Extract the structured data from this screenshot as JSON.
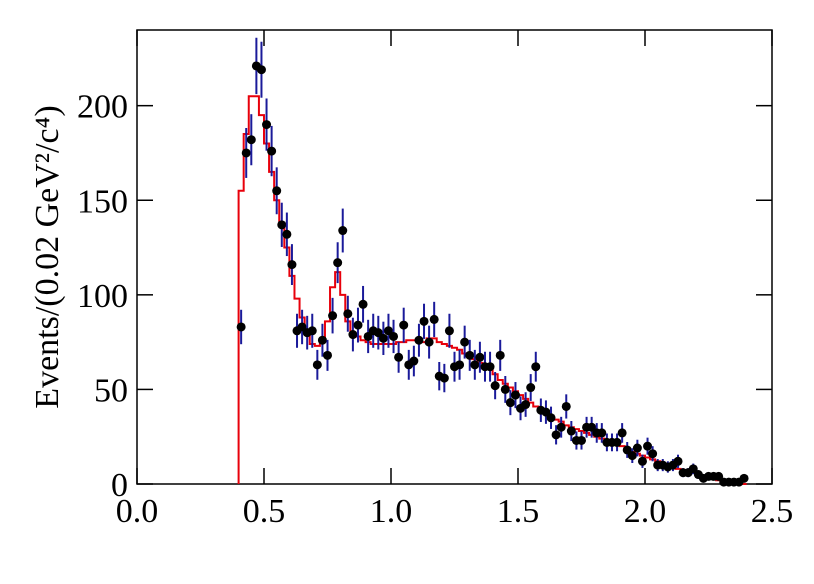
{
  "chart_data": {
    "type": "errorbar",
    "y_label": "Events/(0.02 GeV²/c⁴)",
    "x": [
      0.41,
      0.43,
      0.45,
      0.47,
      0.49,
      0.51,
      0.53,
      0.55,
      0.57,
      0.59,
      0.61,
      0.63,
      0.65,
      0.67,
      0.69,
      0.71,
      0.73,
      0.75,
      0.77,
      0.79,
      0.81,
      0.83,
      0.85,
      0.87,
      0.89,
      0.91,
      0.93,
      0.95,
      0.97,
      0.99,
      1.01,
      1.03,
      1.05,
      1.07,
      1.09,
      1.11,
      1.13,
      1.15,
      1.17,
      1.19,
      1.21,
      1.23,
      1.25,
      1.27,
      1.29,
      1.31,
      1.33,
      1.35,
      1.37,
      1.39,
      1.41,
      1.43,
      1.45,
      1.47,
      1.49,
      1.51,
      1.53,
      1.55,
      1.57,
      1.59,
      1.61,
      1.63,
      1.65,
      1.67,
      1.69,
      1.71,
      1.73,
      1.75,
      1.77,
      1.79,
      1.81,
      1.83,
      1.85,
      1.87,
      1.89,
      1.91,
      1.93,
      1.95,
      1.97,
      1.99,
      2.01,
      2.03,
      2.05,
      2.07,
      2.09,
      2.11,
      2.13,
      2.15,
      2.17,
      2.19,
      2.21,
      2.23,
      2.25,
      2.27,
      2.29,
      2.31,
      2.33,
      2.35,
      2.37,
      2.39
    ],
    "series": [
      {
        "style": "points",
        "color": "#000000",
        "error_color": "#1a1a9a",
        "values": [
          83,
          175,
          182,
          221,
          219,
          190,
          176,
          155,
          137,
          132,
          116,
          81,
          83,
          80,
          81,
          63,
          76,
          68,
          89,
          117,
          134,
          90,
          79,
          84,
          95,
          78,
          81,
          80,
          77,
          81,
          78,
          67,
          84,
          63,
          65,
          76,
          86,
          75,
          87,
          57,
          56,
          81,
          62,
          63,
          75,
          68,
          63,
          67,
          62,
          62,
          52,
          68,
          50,
          43,
          47,
          40,
          42,
          51,
          62,
          39,
          38,
          35,
          26,
          30,
          41,
          28,
          23,
          23,
          30,
          30,
          27,
          27,
          22,
          22,
          22,
          27,
          18,
          15,
          19,
          12,
          20,
          16,
          10,
          10,
          9,
          10,
          12,
          6,
          6,
          8,
          5,
          3,
          4,
          4,
          4,
          1,
          1,
          1,
          1,
          3
        ],
        "errors": [
          9.1,
          13.2,
          13.5,
          14.9,
          14.8,
          13.8,
          13.3,
          12.4,
          11.7,
          11.5,
          10.8,
          9,
          9.1,
          8.9,
          9,
          7.9,
          8.7,
          8.2,
          9.4,
          10.8,
          11.6,
          9.5,
          8.9,
          9.2,
          9.7,
          8.8,
          9,
          8.9,
          8.8,
          9,
          8.8,
          8.2,
          9.2,
          7.9,
          8.1,
          8.7,
          9.3,
          8.7,
          9.3,
          7.5,
          7.5,
          9,
          7.9,
          7.9,
          8.7,
          8.2,
          7.9,
          8.2,
          7.9,
          7.9,
          7.2,
          8.2,
          7.1,
          6.6,
          6.9,
          6.3,
          6.5,
          7.1,
          7.9,
          6.2,
          6.2,
          5.9,
          5.1,
          5.5,
          6.4,
          5.3,
          4.8,
          4.8,
          5.5,
          5.5,
          5.2,
          5.2,
          4.7,
          4.7,
          4.7,
          5.2,
          4.2,
          3.9,
          4.4,
          3.5,
          4.5,
          4,
          3.2,
          3.2,
          3,
          3.2,
          3.5,
          2.4,
          2.4,
          2.8,
          2.2,
          1.7,
          2,
          2,
          2,
          1,
          1,
          1,
          1,
          1.7
        ]
      },
      {
        "style": "steps",
        "color": "#e8000b",
        "values": [
          155,
          185,
          205,
          205,
          195,
          180,
          165,
          150,
          138,
          125,
          110,
          98,
          88,
          80,
          74,
          73,
          76,
          86,
          104,
          112,
          100,
          86,
          80,
          78,
          76,
          75,
          74,
          74,
          74,
          74,
          74,
          75,
          75,
          76,
          76,
          75,
          75,
          77,
          77,
          75,
          74,
          73,
          72,
          71,
          69,
          68,
          66,
          64,
          63,
          61,
          58,
          55,
          53,
          51,
          49,
          47,
          45,
          43,
          41,
          40,
          38,
          36,
          34,
          33,
          31,
          30,
          29,
          28,
          27,
          26,
          25,
          24,
          23,
          22,
          21,
          20,
          19,
          17,
          16,
          15,
          14,
          13,
          12,
          11,
          10,
          9,
          8,
          7,
          6,
          6,
          5,
          4,
          3,
          3,
          2,
          2,
          1,
          1,
          1,
          0
        ]
      }
    ],
    "xlim": [
      0,
      2.5
    ],
    "ylim": [
      0,
      240
    ],
    "xticks": [
      {
        "value": 0,
        "label": "0.0"
      },
      0.5,
      {
        "value": 1,
        "label": "1.0"
      },
      1.5,
      {
        "value": 2,
        "label": "2.0"
      },
      2.5
    ],
    "yticks": [
      0,
      50,
      100,
      150,
      200
    ]
  }
}
